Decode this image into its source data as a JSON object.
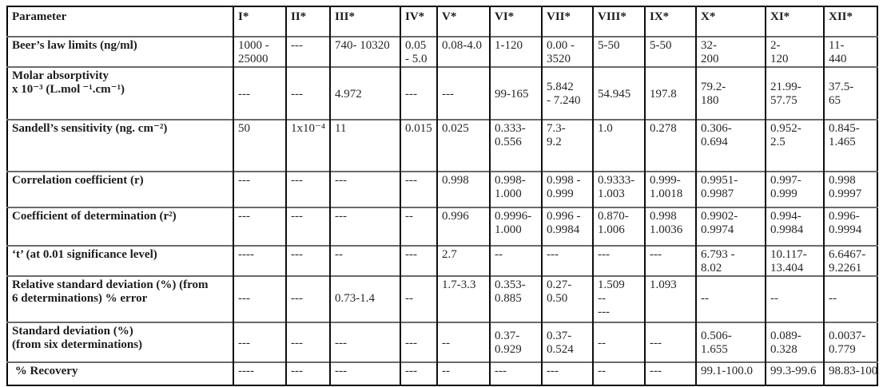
{
  "table": {
    "columns": [
      "Parameter",
      "I*",
      "II*",
      "III*",
      "IV*",
      "V*",
      "VI*",
      "VII*",
      "VIII*",
      "IX*",
      "X*",
      "XI*",
      "XII*"
    ],
    "rows": [
      {
        "param": "Beer’s law limits (ng/ml)",
        "values": [
          "1000 -\n25000",
          "---",
          "740- 10320",
          "0.05\n- 5.0",
          "0.08-4.0",
          "1-120",
          "0.00 -\n3520",
          "5-50",
          "5-50",
          "32-\n200",
          "2-\n120",
          "11-\n440"
        ]
      },
      {
        "param": "Molar absorptivity\nx 10⁻³ (L.mol ⁻¹.cm⁻¹)",
        "values": [
          "---",
          "---",
          "4.972",
          "---",
          "---",
          "99-165",
          "5.842\n- 7.240",
          "54.945",
          "197.8",
          "79.2-\n180",
          "21.99-\n57.75",
          "37.5-\n65"
        ]
      },
      {
        "param": "Sandell’s sensitivity (ng. cm⁻²)",
        "values": [
          "50",
          "1x10⁻⁴",
          "11",
          "0.015",
          "0.025",
          "0.333-\n0.556",
          "7.3-\n9.2",
          "1.0",
          "0.278",
          "0.306-\n0.694",
          "0.952-\n2.5",
          "0.845-\n1.465"
        ]
      },
      {
        "param": "Correlation coefficient (r)",
        "values": [
          "---",
          "---",
          "---",
          "---",
          "0.998",
          "0.998-\n1.000",
          "0.998 -\n0.999",
          "0.9333-\n1.003",
          "0.999-\n1.0018",
          "0.9951-\n0.9987",
          "0.997-\n0.999",
          "0.998\n0.9997"
        ]
      },
      {
        "param": "Coefficient of determination (r²)",
        "values": [
          "---",
          "---",
          "---",
          "--",
          "0.996",
          "0.9996-\n1.000",
          "0.996 -\n0.9984",
          "0.870-\n1.006",
          "0.998\n1.0036",
          "0.9902-\n0.9974",
          "0.994-\n0.9984",
          "0.996-\n0.9994"
        ]
      },
      {
        "param": "‘t’ (at 0.01 significance level)",
        "values": [
          "----",
          "---",
          "--",
          "---",
          "2.7",
          "--",
          "---",
          "---",
          "---",
          "6.793 -\n8.02",
          "10.117-\n13.404",
          "6.6467-\n9.2261"
        ]
      },
      {
        "param": "Relative standard deviation (%) (from\n6 determinations) % error",
        "values": [
          "\n---",
          "\n---",
          "\n0.73-1.4",
          "\n--",
          "1.7-3.3",
          "0.353-\n0.885",
          "0.27-\n0.50",
          "1.509\n--\n---",
          "1.093",
          "\n--",
          "\n--",
          "\n--"
        ]
      },
      {
        "param": "Standard deviation (%)\n(from six determinations)",
        "values": [
          "---",
          "---",
          "---",
          "---",
          "--",
          "0.37-\n0.929",
          "0.37-\n0.524",
          "--",
          "---",
          "0.506-\n1.655",
          "0.089-\n0.328",
          "0.0037-\n0.779"
        ]
      },
      {
        "param": " % Recovery",
        "values": [
          "----",
          "---",
          "---",
          "---",
          "--",
          "---",
          "---",
          "--",
          "---",
          "99.1-100.0",
          "99.3-99.6",
          "98.83-100"
        ]
      }
    ]
  }
}
